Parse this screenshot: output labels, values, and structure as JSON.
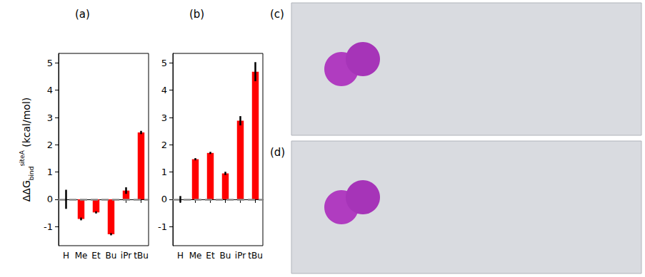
{
  "chart_data": [
    {
      "type": "bar",
      "panel_label": "(a)",
      "categories": [
        "H",
        "Me",
        "Et",
        "Bu",
        "iPr",
        "tBu"
      ],
      "values": [
        0,
        -0.72,
        -0.48,
        -1.28,
        0.32,
        2.45
      ],
      "errors": [
        0.35,
        0.05,
        0.04,
        0.04,
        0.12,
        0.06
      ],
      "color": "#ff0000",
      "ylim": [
        -1.7,
        5.35
      ],
      "yticks": [
        -1,
        0,
        1,
        2,
        3,
        4,
        5
      ],
      "y_label": {
        "base": "ΔΔG",
        "sub": "bind",
        "sup": "siteA",
        "unit": "(kcal/mol)"
      },
      "hline": 0,
      "grid": false
    },
    {
      "type": "bar",
      "panel_label": "(b)",
      "categories": [
        "H",
        "Me",
        "Et",
        "Bu",
        "iPr",
        "tBu"
      ],
      "values": [
        0,
        1.47,
        1.7,
        0.95,
        2.88,
        4.68
      ],
      "errors": [
        0.12,
        0.04,
        0.04,
        0.06,
        0.17,
        0.35
      ],
      "color": "#ff0000",
      "ylim": [
        -1.7,
        5.35
      ],
      "yticks": [
        -1,
        0,
        1,
        2,
        3,
        4,
        5
      ],
      "hline": 0,
      "grid": false
    }
  ],
  "images": [
    {
      "panel_label": "(c)"
    },
    {
      "panel_label": "(d)"
    }
  ]
}
